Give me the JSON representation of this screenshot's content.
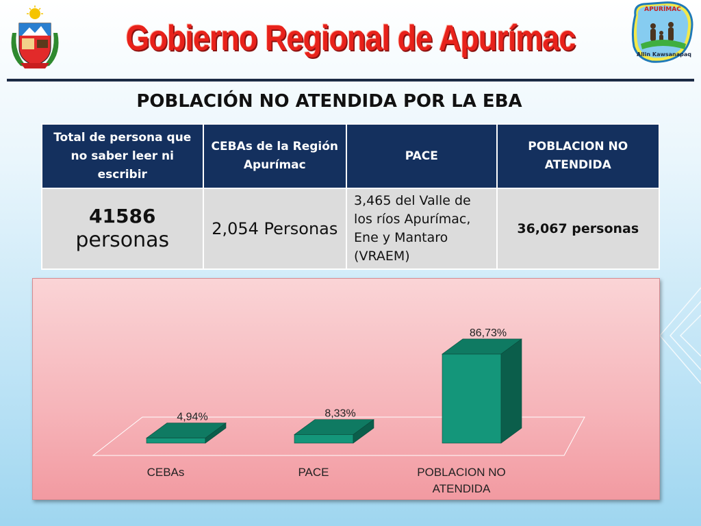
{
  "header": {
    "title": "Gobierno Regional de Apurímac",
    "logo_right_top_text": "APURÍMAC",
    "logo_right_bottom_text": "Allin Kawsanapaq"
  },
  "subtitle": "POBLACIÓN NO ATENDIDA  POR LA EBA",
  "table": {
    "headers": [
      "Total de persona que no saber leer ni escribir",
      "CEBAs de la Región Apurímac",
      "PACE",
      "POBLACION NO ATENDIDA"
    ],
    "row": {
      "total_number": "41586",
      "total_unit": "personas",
      "cebas": "2,054 Personas",
      "pace": "3,465 del Valle de los ríos Apurímac, Ene y Mantaro (VRAEM)",
      "no_atendida": "36,067 personas"
    }
  },
  "chart_data": {
    "type": "bar",
    "categories": [
      "CEBAs",
      "PACE",
      "POBLACION NO ATENDIDA"
    ],
    "category_lines": [
      [
        "CEBAs"
      ],
      [
        "PACE"
      ],
      [
        "POBLACION NO",
        "ATENDIDA"
      ]
    ],
    "values": [
      4.94,
      8.33,
      86.73
    ],
    "data_labels": [
      "4,94%",
      "8,33%",
      "86,73%"
    ],
    "title": "",
    "xlabel": "",
    "ylabel": "",
    "three_d": true,
    "bar_color": "#14967a",
    "bar_top_color": "#0f7a62",
    "bar_side_color": "#0b5e4b",
    "background_color": "#f7b9be"
  }
}
